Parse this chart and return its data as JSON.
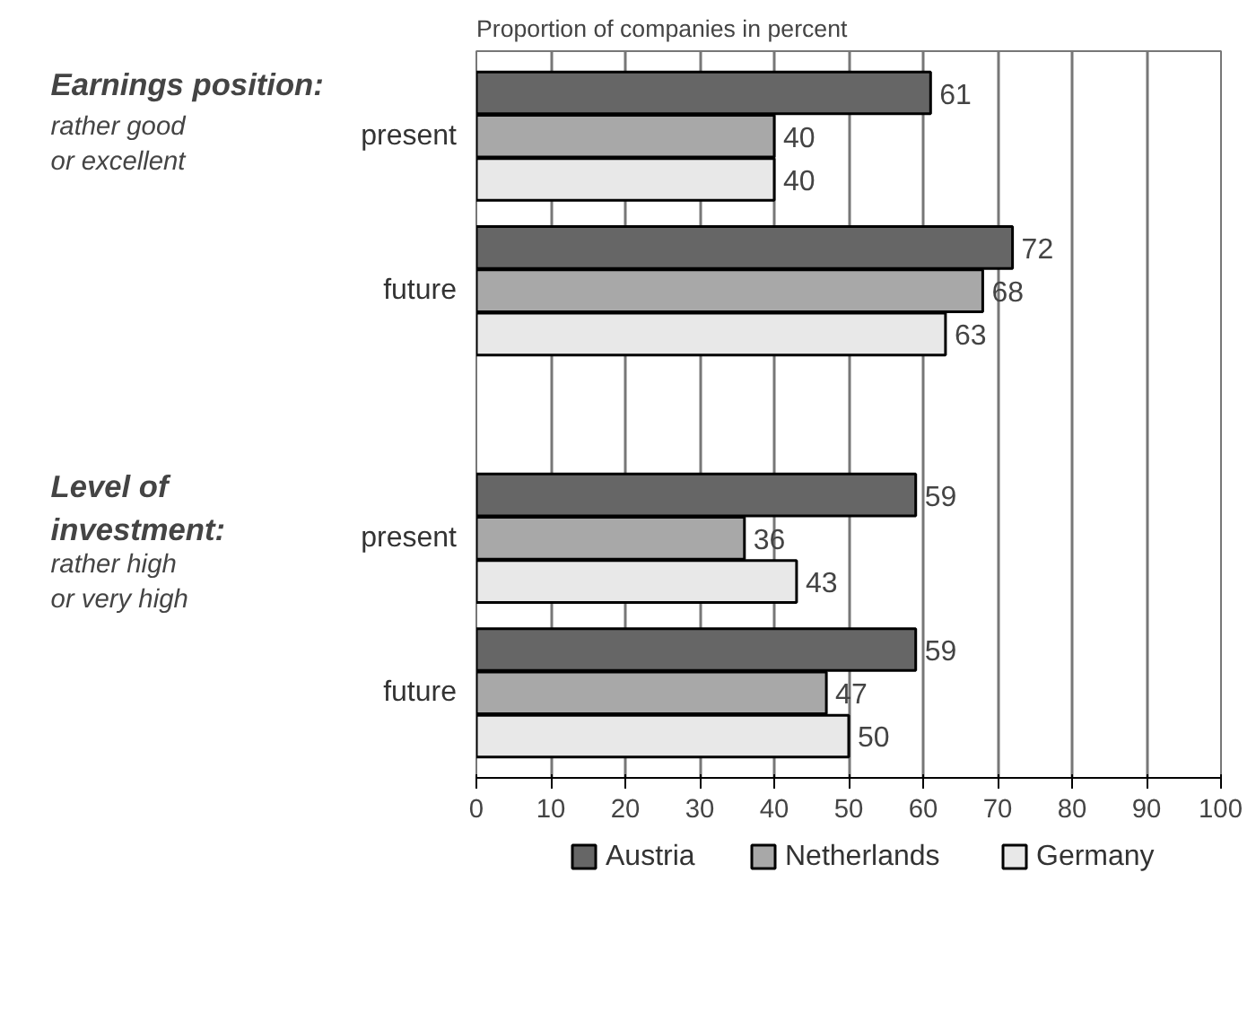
{
  "chart_data": {
    "type": "bar",
    "orientation": "horizontal",
    "xlabel": "Proportion of companies in percent",
    "categories": [
      "present",
      "future",
      "present",
      "future"
    ],
    "series": [
      {
        "name": "Austria",
        "color": "#666666",
        "values": [
          61,
          72,
          59,
          59
        ]
      },
      {
        "name": "Netherlands",
        "color": "#a8a8a8",
        "values": [
          40,
          68,
          36,
          47
        ]
      },
      {
        "name": "Germany",
        "color": "#e8e8e8",
        "values": [
          40,
          63,
          43,
          50
        ]
      }
    ],
    "xlim": [
      0,
      100
    ],
    "xticks": [
      0,
      10,
      20,
      30,
      40,
      50,
      60,
      70,
      80,
      90,
      100
    ],
    "grid": "x",
    "legend": "bottom",
    "data_labels": true,
    "annotations": [
      "Earnings position:",
      "rather good or excellent",
      "Level of investment:",
      "rather high or very high"
    ]
  }
}
